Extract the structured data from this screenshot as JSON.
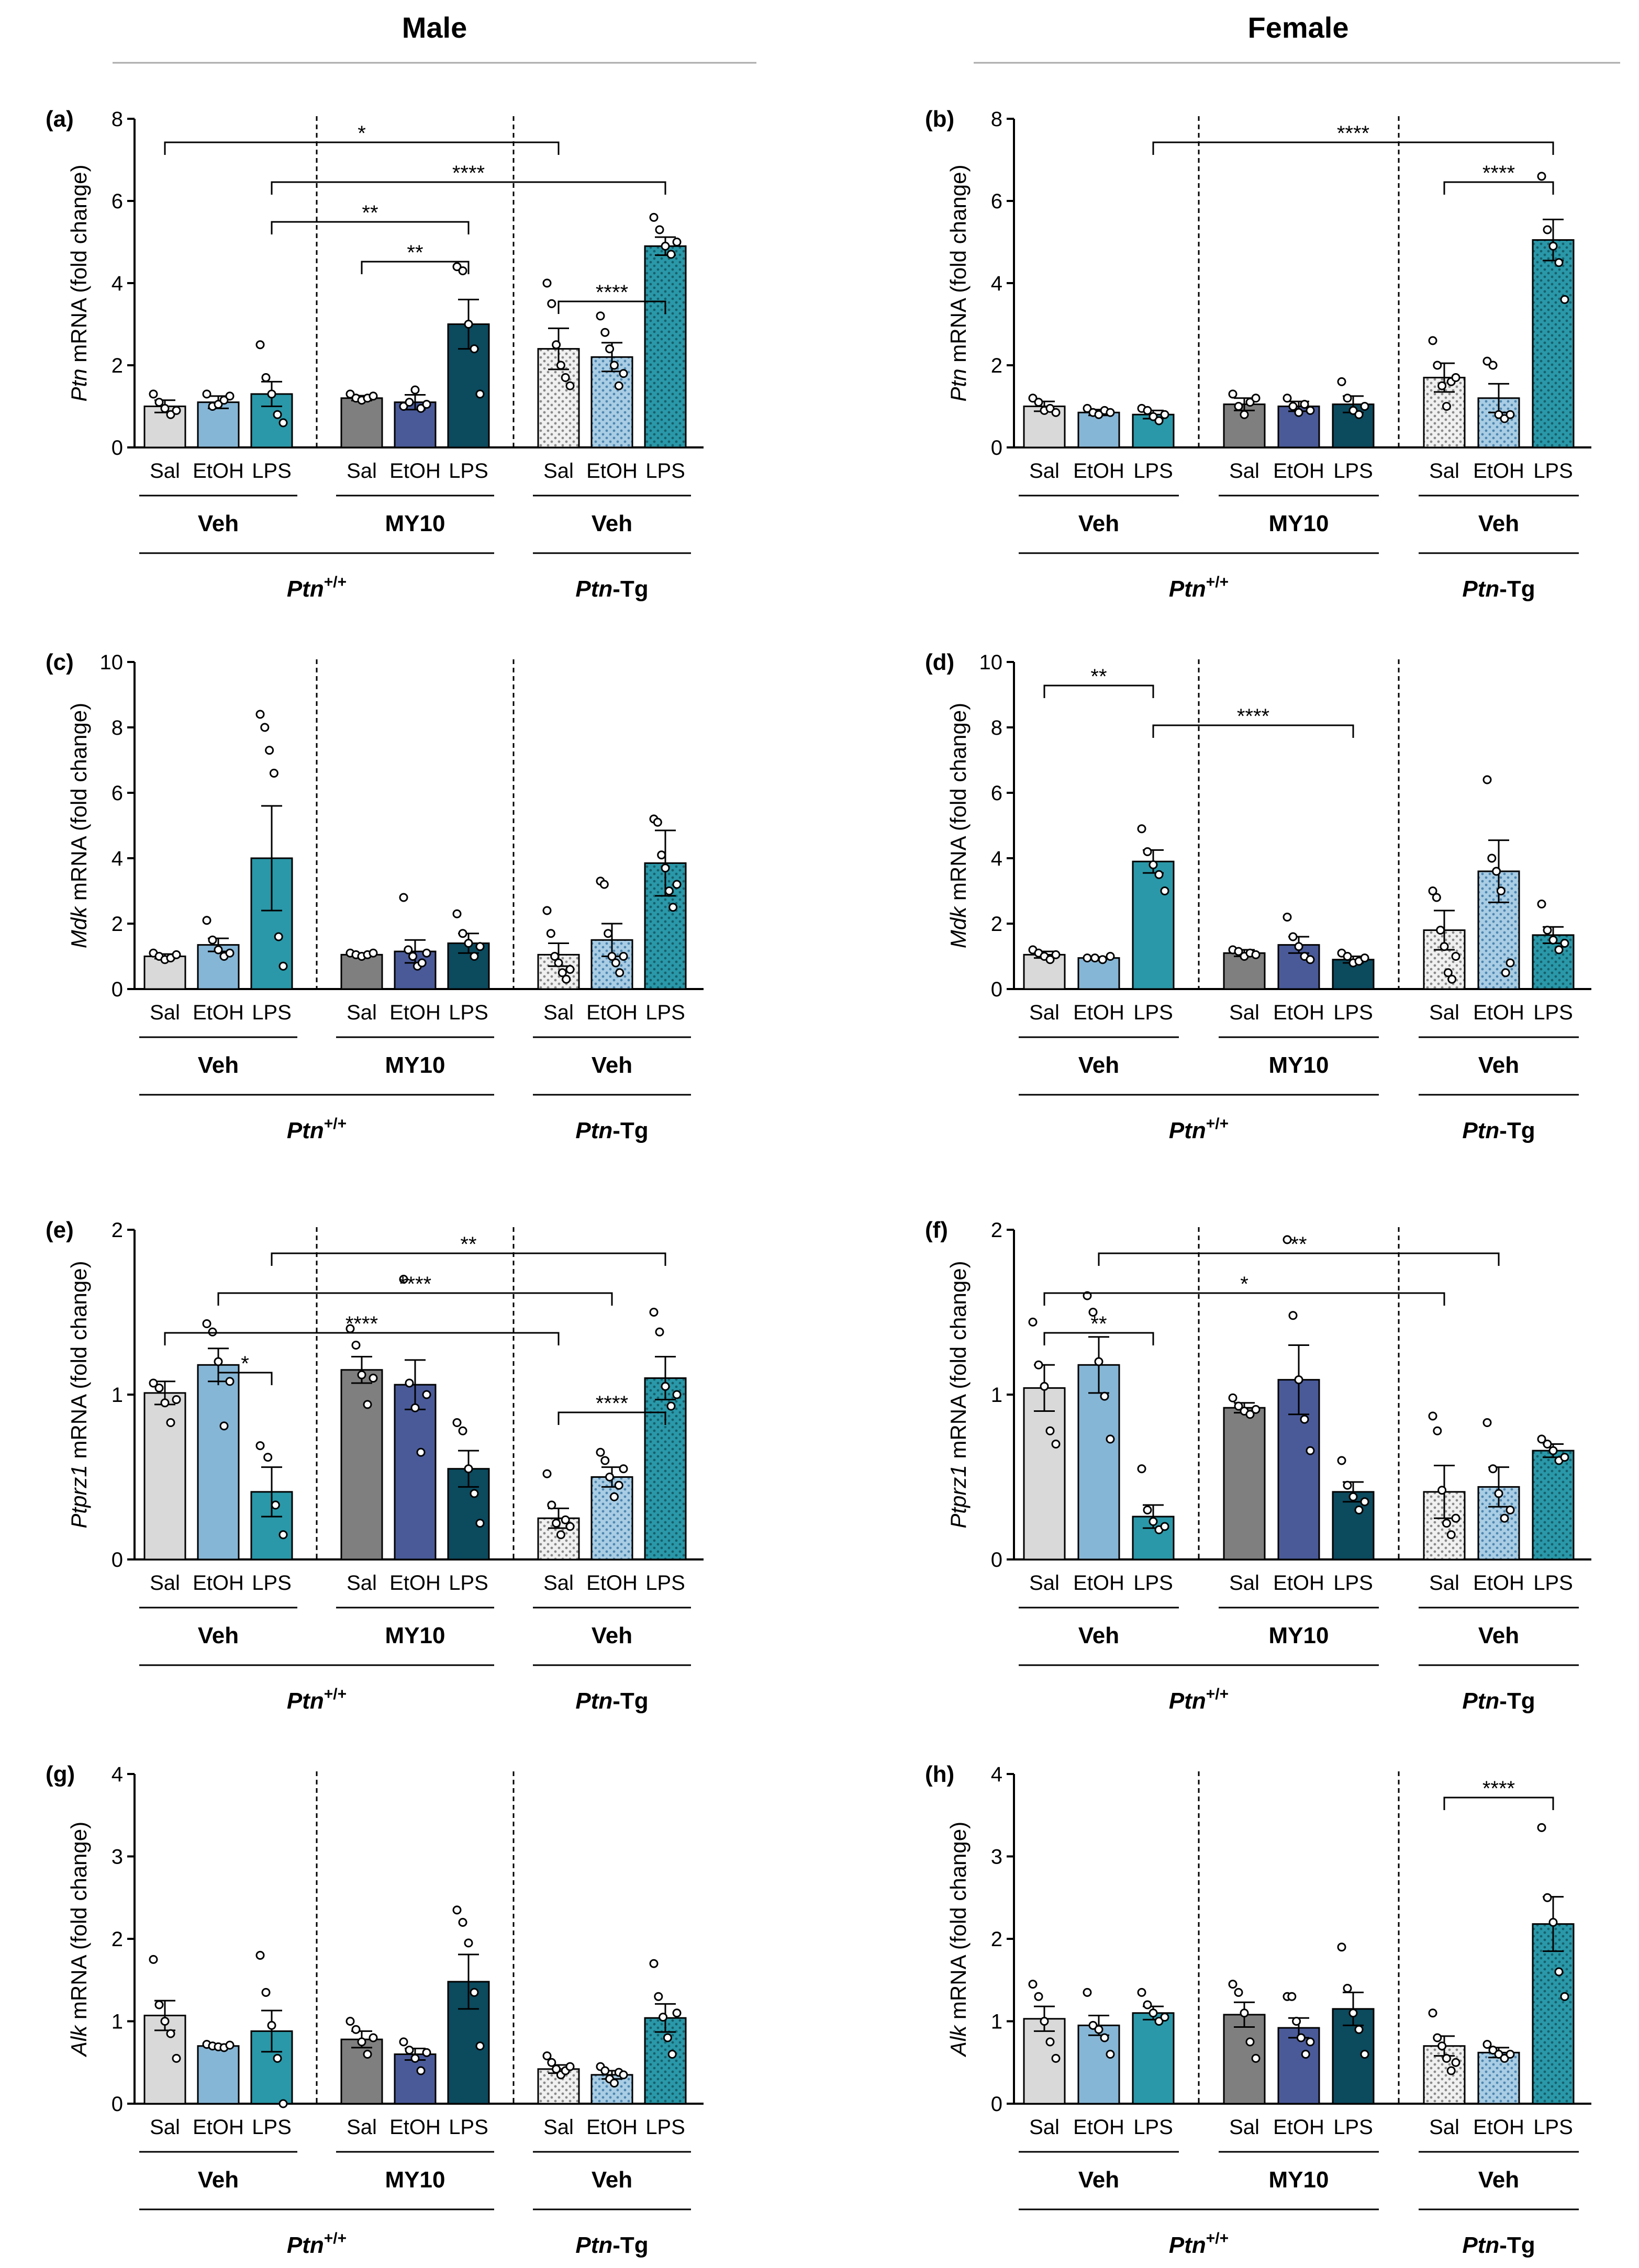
{
  "headers": {
    "male": "Male",
    "female": "Female"
  },
  "x_tick_labels": [
    "Sal",
    "EtOH",
    "LPS"
  ],
  "x_group_labels": {
    "veh": "Veh",
    "my10": "MY10"
  },
  "genotype_labels": {
    "wt_base": "Ptn",
    "wt_sup": "+/+",
    "tg_italic": "Ptn",
    "tg_rest": "-Tg"
  },
  "bar_colors": [
    "#d9d9d9",
    "#86b6d6",
    "#2a98a8",
    "#7f7f7f",
    "#4a5a99",
    "#0c4a5e",
    "#e0e0e0",
    "#86b6d6",
    "#2a98a8"
  ],
  "chart_data": [
    {
      "panel": "(a)",
      "type": "bar",
      "sex": "Male",
      "gene": "Ptn",
      "ylabel_rest": " mRNA (fold change)",
      "ylim": [
        0,
        8
      ],
      "yticks": [
        "0",
        "2",
        "4",
        "6",
        "8"
      ],
      "categories": [
        "Sal",
        "EtOH",
        "LPS",
        "Sal",
        "EtOH",
        "LPS",
        "Sal",
        "EtOH",
        "LPS"
      ],
      "values": [
        1.0,
        1.1,
        1.3,
        1.2,
        1.1,
        3.0,
        2.4,
        2.2,
        4.9
      ],
      "sem": [
        0.15,
        0.15,
        0.3,
        0.06,
        0.18,
        0.6,
        0.5,
        0.35,
        0.22
      ],
      "points": [
        [
          1.3,
          1.1,
          0.95,
          0.8,
          0.9
        ],
        [
          1.3,
          1.0,
          1.05,
          1.15,
          1.25
        ],
        [
          2.5,
          1.7,
          1.3,
          0.8,
          0.6
        ],
        [
          1.3,
          1.2,
          1.15,
          1.2,
          1.25
        ],
        [
          1.0,
          1.1,
          1.4,
          0.95,
          1.05
        ],
        [
          4.4,
          4.3,
          3.0,
          2.4,
          1.3
        ],
        [
          4.0,
          3.5,
          2.5,
          2.0,
          1.7,
          1.5
        ],
        [
          3.2,
          2.8,
          2.4,
          2.0,
          1.5,
          1.8
        ],
        [
          5.6,
          5.3,
          4.9,
          4.7,
          5.0
        ]
      ],
      "significance": [
        {
          "from": 0,
          "to": 6,
          "label": "*"
        },
        {
          "from": 2,
          "to": 8,
          "label": "****"
        },
        {
          "from": 2,
          "to": 5,
          "label": "**"
        },
        {
          "from": 3,
          "to": 5,
          "label": "**"
        },
        {
          "from": 6,
          "to": 8,
          "label": "****"
        }
      ]
    },
    {
      "panel": "(b)",
      "type": "bar",
      "sex": "Female",
      "gene": "Ptn",
      "ylabel_rest": " mRNA (fold change)",
      "ylim": [
        0,
        8
      ],
      "yticks": [
        "0",
        "2",
        "4",
        "6",
        "8"
      ],
      "categories": [
        "Sal",
        "EtOH",
        "LPS",
        "Sal",
        "EtOH",
        "LPS",
        "Sal",
        "EtOH",
        "LPS"
      ],
      "values": [
        1.0,
        0.85,
        0.8,
        1.05,
        1.0,
        1.05,
        1.7,
        1.2,
        5.05
      ],
      "sem": [
        0.12,
        0.07,
        0.1,
        0.15,
        0.12,
        0.2,
        0.35,
        0.35,
        0.5
      ],
      "points": [
        [
          1.2,
          1.1,
          0.9,
          0.95,
          0.85
        ],
        [
          0.95,
          0.85,
          0.8,
          0.9,
          0.85
        ],
        [
          0.95,
          0.9,
          0.75,
          0.65,
          0.8
        ],
        [
          1.3,
          1.0,
          0.8,
          1.1,
          1.2
        ],
        [
          1.2,
          1.0,
          0.85,
          1.05,
          0.9
        ],
        [
          1.6,
          1.2,
          0.9,
          0.8,
          1.0
        ],
        [
          2.6,
          2.0,
          1.5,
          1.0,
          1.6,
          1.7
        ],
        [
          2.1,
          2.0,
          0.8,
          0.7,
          0.8
        ],
        [
          6.6,
          5.3,
          4.9,
          4.5,
          3.6
        ]
      ],
      "significance": [
        {
          "from": 2,
          "to": 8,
          "label": "****"
        },
        {
          "from": 6,
          "to": 8,
          "label": "****"
        }
      ]
    },
    {
      "panel": "(c)",
      "type": "bar",
      "sex": "Male",
      "gene": "Mdk",
      "ylabel_rest": " mRNA (fold change)",
      "ylim": [
        0,
        10
      ],
      "yticks": [
        "0",
        "2",
        "4",
        "6",
        "8",
        "10"
      ],
      "categories": [
        "Sal",
        "EtOH",
        "LPS",
        "Sal",
        "EtOH",
        "LPS",
        "Sal",
        "EtOH",
        "LPS"
      ],
      "values": [
        1.0,
        1.35,
        4.0,
        1.05,
        1.15,
        1.4,
        1.05,
        1.5,
        3.85
      ],
      "sem": [
        0.07,
        0.2,
        1.6,
        0.05,
        0.35,
        0.3,
        0.35,
        0.5,
        1.0
      ],
      "points": [
        [
          1.1,
          1.0,
          0.9,
          0.95,
          1.05
        ],
        [
          2.1,
          1.5,
          1.2,
          1.0,
          1.1
        ],
        [
          8.4,
          8.0,
          7.3,
          6.6,
          1.6,
          0.7
        ],
        [
          1.1,
          1.05,
          1.0,
          1.05,
          1.1
        ],
        [
          2.8,
          1.2,
          1.0,
          0.7,
          0.8,
          1.1
        ],
        [
          2.3,
          1.7,
          1.4,
          1.0,
          1.3
        ],
        [
          2.4,
          1.7,
          1.0,
          0.8,
          0.5,
          0.3,
          0.6
        ],
        [
          3.3,
          3.2,
          1.7,
          1.0,
          0.8,
          0.5,
          1.0
        ],
        [
          5.2,
          5.1,
          4.1,
          3.7,
          3.0,
          2.5,
          3.2
        ]
      ],
      "significance": []
    },
    {
      "panel": "(d)",
      "type": "bar",
      "sex": "Female",
      "gene": "Mdk",
      "ylabel_rest": " mRNA (fold change)",
      "ylim": [
        0,
        10
      ],
      "yticks": [
        "0",
        "2",
        "4",
        "6",
        "8",
        "10"
      ],
      "categories": [
        "Sal",
        "EtOH",
        "LPS",
        "Sal",
        "EtOH",
        "LPS",
        "Sal",
        "EtOH",
        "LPS"
      ],
      "values": [
        1.05,
        0.95,
        3.9,
        1.1,
        1.35,
        0.9,
        1.8,
        3.6,
        1.65
      ],
      "sem": [
        0.1,
        0.03,
        0.35,
        0.1,
        0.25,
        0.1,
        0.6,
        0.95,
        0.25
      ],
      "points": [
        [
          1.2,
          1.1,
          1.0,
          0.9,
          1.05
        ],
        [
          0.95,
          0.95,
          0.9,
          1.0
        ],
        [
          4.9,
          4.2,
          3.8,
          3.5,
          3.0
        ],
        [
          1.2,
          1.15,
          1.0,
          1.1,
          1.05
        ],
        [
          2.2,
          1.6,
          1.3,
          1.0,
          0.9
        ],
        [
          1.1,
          1.0,
          0.8,
          0.85,
          0.95
        ],
        [
          3.0,
          2.8,
          1.8,
          1.3,
          0.5,
          0.3,
          1.0
        ],
        [
          6.4,
          4.0,
          3.6,
          3.0,
          0.5,
          0.8
        ],
        [
          2.6,
          1.8,
          1.5,
          1.2,
          1.4
        ]
      ],
      "significance": [
        {
          "from": 0,
          "to": 2,
          "label": "**"
        },
        {
          "from": 2,
          "to": 5,
          "label": "****"
        }
      ]
    },
    {
      "panel": "(e)",
      "type": "bar",
      "sex": "Male",
      "gene": "Ptprz1",
      "ylabel_rest": " mRNA (fold change)",
      "ylim": [
        0,
        2
      ],
      "yticks": [
        "0",
        "1",
        "2"
      ],
      "categories": [
        "Sal",
        "EtOH",
        "LPS",
        "Sal",
        "EtOH",
        "LPS",
        "Sal",
        "EtOH",
        "LPS"
      ],
      "values": [
        1.01,
        1.18,
        0.41,
        1.15,
        1.06,
        0.55,
        0.25,
        0.5,
        1.1
      ],
      "sem": [
        0.07,
        0.1,
        0.15,
        0.08,
        0.15,
        0.11,
        0.06,
        0.06,
        0.13
      ],
      "points": [
        [
          1.07,
          1.04,
          0.95,
          0.83,
          0.97
        ],
        [
          1.43,
          1.38,
          1.2,
          0.81,
          1.08
        ],
        [
          0.69,
          0.62,
          0.33,
          0.15
        ],
        [
          1.4,
          1.3,
          1.12,
          0.94,
          1.1
        ],
        [
          1.7,
          1.07,
          0.92,
          0.65,
          1.0
        ],
        [
          0.83,
          0.78,
          0.55,
          0.4,
          0.22
        ],
        [
          0.52,
          0.33,
          0.22,
          0.15,
          0.24,
          0.2
        ],
        [
          0.65,
          0.6,
          0.5,
          0.38,
          0.45,
          0.55
        ],
        [
          1.5,
          1.38,
          1.05,
          0.93,
          1.0
        ]
      ],
      "significance": [
        {
          "from": 2,
          "to": 8,
          "label": "**"
        },
        {
          "from": 1,
          "to": 7,
          "label": "****"
        },
        {
          "from": 0,
          "to": 6,
          "label": "****"
        },
        {
          "from": 1,
          "to": 2,
          "label": "*"
        },
        {
          "from": 6,
          "to": 8,
          "label": "****"
        }
      ]
    },
    {
      "panel": "(f)",
      "type": "bar",
      "sex": "Female",
      "gene": "Ptprz1",
      "ylabel_rest": " mRNA (fold change)",
      "ylim": [
        0,
        2
      ],
      "yticks": [
        "0",
        "1",
        "2"
      ],
      "categories": [
        "Sal",
        "EtOH",
        "LPS",
        "Sal",
        "EtOH",
        "LPS",
        "Sal",
        "EtOH",
        "LPS"
      ],
      "values": [
        1.04,
        1.18,
        0.26,
        0.92,
        1.09,
        0.41,
        0.41,
        0.44,
        0.66
      ],
      "sem": [
        0.14,
        0.17,
        0.07,
        0.03,
        0.21,
        0.06,
        0.16,
        0.12,
        0.04
      ],
      "points": [
        [
          1.44,
          1.18,
          1.05,
          0.78,
          0.7
        ],
        [
          1.6,
          1.5,
          1.2,
          0.99,
          0.73
        ],
        [
          0.55,
          0.3,
          0.23,
          0.18,
          0.2
        ],
        [
          0.98,
          0.93,
          0.9,
          0.88,
          0.91
        ],
        [
          1.94,
          1.48,
          1.09,
          0.85,
          0.66
        ],
        [
          0.6,
          0.45,
          0.38,
          0.3,
          0.35
        ],
        [
          0.87,
          0.78,
          0.42,
          0.22,
          0.15,
          0.25
        ],
        [
          0.83,
          0.55,
          0.4,
          0.25,
          0.3
        ],
        [
          0.73,
          0.7,
          0.66,
          0.6,
          0.62
        ]
      ],
      "significance": [
        {
          "from": 1,
          "to": 7,
          "label": "**"
        },
        {
          "from": 0,
          "to": 6,
          "label": "*"
        },
        {
          "from": 0,
          "to": 2,
          "label": "**"
        }
      ]
    },
    {
      "panel": "(g)",
      "type": "bar",
      "sex": "Male",
      "gene": "Alk",
      "ylabel_rest": " mRNA (fold change)",
      "ylim": [
        0,
        4
      ],
      "yticks": [
        "0",
        "1",
        "2",
        "3",
        "4"
      ],
      "categories": [
        "Sal",
        "EtOH",
        "LPS",
        "Sal",
        "EtOH",
        "LPS",
        "Sal",
        "EtOH",
        "LPS"
      ],
      "values": [
        1.07,
        0.7,
        0.88,
        0.78,
        0.6,
        1.48,
        0.42,
        0.35,
        1.04
      ],
      "sem": [
        0.18,
        0.02,
        0.25,
        0.1,
        0.07,
        0.33,
        0.05,
        0.05,
        0.17
      ],
      "points": [
        [
          1.75,
          1.2,
          1.0,
          0.85,
          0.55
        ],
        [
          0.72,
          0.7,
          0.69,
          0.68,
          0.71
        ],
        [
          1.8,
          1.35,
          0.95,
          0.55,
          0.0
        ],
        [
          1.0,
          0.9,
          0.75,
          0.6,
          0.8
        ],
        [
          0.75,
          0.65,
          0.55,
          0.4,
          0.62
        ],
        [
          2.35,
          2.2,
          1.95,
          1.35,
          0.7
        ],
        [
          0.58,
          0.5,
          0.42,
          0.35,
          0.4,
          0.45
        ],
        [
          0.45,
          0.4,
          0.3,
          0.25,
          0.38,
          0.35
        ],
        [
          1.7,
          1.3,
          1.05,
          0.8,
          0.6,
          1.1
        ]
      ],
      "significance": []
    },
    {
      "panel": "(h)",
      "type": "bar",
      "sex": "Female",
      "gene": "Alk",
      "ylabel_rest": " mRNA (fold change)",
      "ylim": [
        0,
        4
      ],
      "yticks": [
        "0",
        "1",
        "2",
        "3",
        "4"
      ],
      "categories": [
        "Sal",
        "EtOH",
        "LPS",
        "Sal",
        "EtOH",
        "LPS",
        "Sal",
        "EtOH",
        "LPS"
      ],
      "values": [
        1.03,
        0.95,
        1.1,
        1.08,
        0.92,
        1.15,
        0.7,
        0.62,
        2.18
      ],
      "sem": [
        0.15,
        0.12,
        0.08,
        0.15,
        0.12,
        0.2,
        0.12,
        0.06,
        0.33
      ],
      "points": [
        [
          1.45,
          1.3,
          1.0,
          0.75,
          0.55
        ],
        [
          1.35,
          0.95,
          0.9,
          0.8,
          0.6
        ],
        [
          1.35,
          1.2,
          1.1,
          1.0,
          1.05
        ],
        [
          1.45,
          1.35,
          1.1,
          0.75,
          0.55
        ],
        [
          1.3,
          1.3,
          1.0,
          0.8,
          0.6,
          0.75
        ],
        [
          1.9,
          1.4,
          1.1,
          0.9,
          0.6
        ],
        [
          1.1,
          0.8,
          0.7,
          0.55,
          0.4,
          0.5
        ],
        [
          0.72,
          0.65,
          0.6,
          0.55,
          0.6
        ],
        [
          3.35,
          2.5,
          2.2,
          1.6,
          1.3
        ]
      ],
      "significance": [
        {
          "from": 6,
          "to": 8,
          "label": "****"
        }
      ]
    }
  ]
}
